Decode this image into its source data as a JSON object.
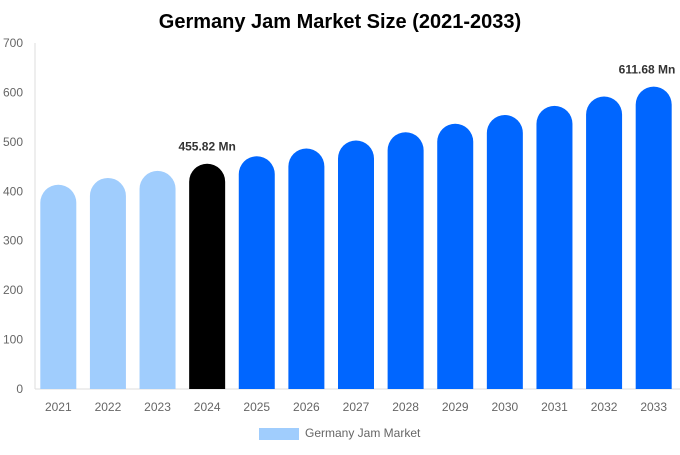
{
  "chart_data": {
    "type": "bar",
    "title": "Germany Jam Market Size (2021-2033)",
    "xlabel": "",
    "ylabel": "",
    "ylim": [
      0,
      700
    ],
    "yticks": [
      0,
      100,
      200,
      300,
      400,
      500,
      600,
      700
    ],
    "grid": false,
    "legend_placement": "bottom",
    "categories": [
      "2021",
      "2022",
      "2023",
      "2024",
      "2025",
      "2026",
      "2027",
      "2028",
      "2029",
      "2030",
      "2031",
      "2032",
      "2033"
    ],
    "series": [
      {
        "name": "Germany Jam Market",
        "values": [
          413.3,
          427.0,
          441.2,
          455.82,
          470.9,
          486.5,
          502.7,
          519.4,
          536.6,
          554.4,
          572.8,
          591.8,
          611.68
        ]
      }
    ],
    "bar_colors": [
      "#a0cdfd",
      "#a0cdfd",
      "#a0cdfd",
      "#000000",
      "#0066ff",
      "#0066ff",
      "#0066ff",
      "#0066ff",
      "#0066ff",
      "#0066ff",
      "#0066ff",
      "#0066ff",
      "#0066ff"
    ],
    "data_labels": [
      {
        "category": "2024",
        "text": "455.82 Mn"
      },
      {
        "category": "2033",
        "text": "611.68 Mn"
      }
    ],
    "legend_color": "#a0cdfd"
  }
}
